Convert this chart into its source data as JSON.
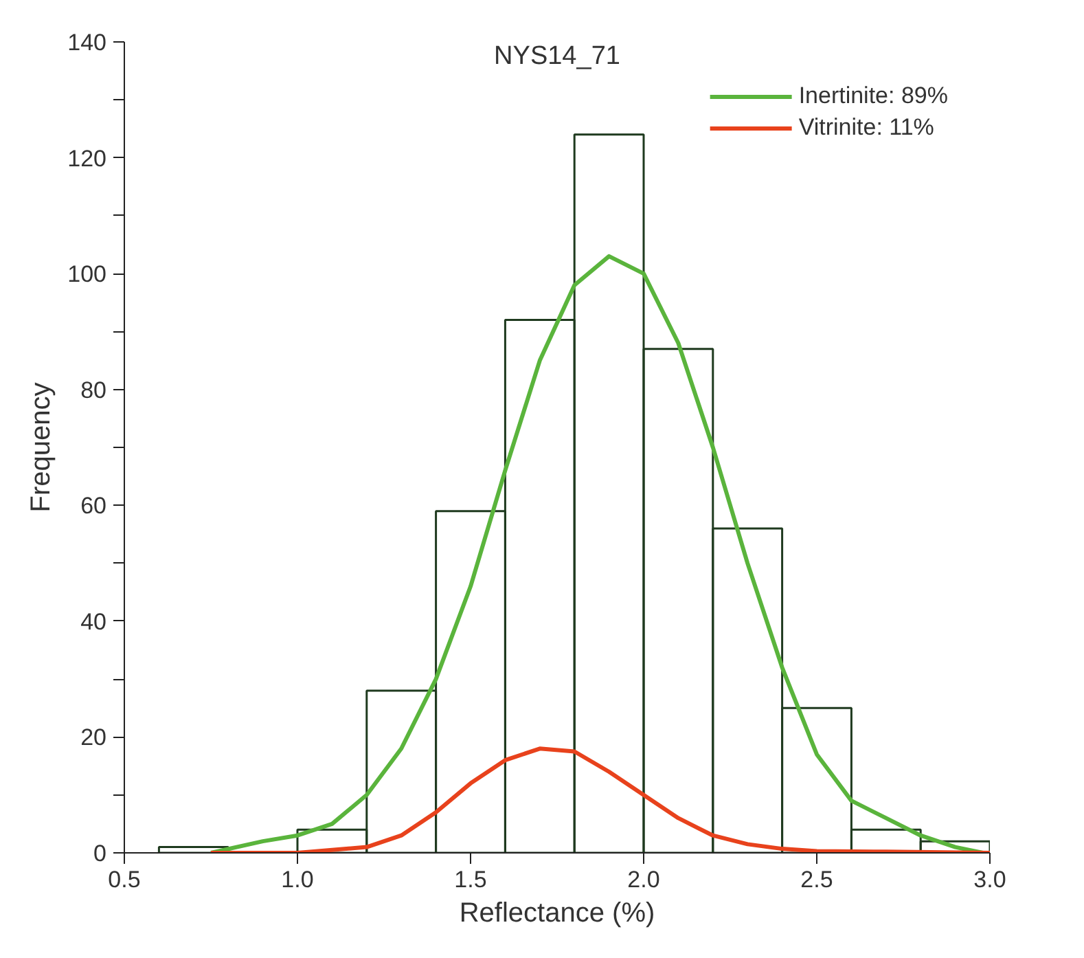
{
  "chart_data": {
    "type": "histogram",
    "title": "NYS14_71",
    "xlabel": "Reflectance (%)",
    "ylabel": "Frequency",
    "bins": [
      0.6,
      0.8,
      1.0,
      1.2,
      1.4,
      1.6,
      1.8,
      2.0,
      2.2,
      2.4,
      2.6,
      2.8,
      3.0
    ],
    "values": [
      1,
      0,
      4,
      28,
      59,
      92,
      124,
      87,
      56,
      25,
      4,
      2
    ],
    "color": "#1f3a1f",
    "series": [
      {
        "type": "line",
        "name": "Inertinite: 89%",
        "color": "#5ab43c",
        "x": [
          0.75,
          0.9,
          1.0,
          1.1,
          1.2,
          1.3,
          1.4,
          1.5,
          1.6,
          1.7,
          1.8,
          1.9,
          2.0,
          2.1,
          2.2,
          2.3,
          2.4,
          2.5,
          2.6,
          2.7,
          2.8,
          2.9,
          2.98
        ],
        "values": [
          0,
          2,
          3,
          5,
          10,
          18,
          30,
          46,
          66,
          85,
          98,
          103,
          100,
          88,
          70,
          50,
          32,
          17,
          9,
          6,
          3,
          1,
          0
        ]
      },
      {
        "type": "line",
        "name": "Vitrinite: 11%",
        "color": "#e8421c",
        "x": [
          0.75,
          1.0,
          1.2,
          1.3,
          1.4,
          1.5,
          1.6,
          1.7,
          1.8,
          1.9,
          2.0,
          2.1,
          2.2,
          2.3,
          2.4,
          2.5,
          2.7,
          3.0
        ],
        "values": [
          0,
          0,
          1,
          3,
          7,
          12,
          16,
          18,
          17.5,
          14,
          10,
          6,
          3,
          1.5,
          0.7,
          0.3,
          0.2,
          0
        ]
      }
    ],
    "xlim": [
      0.5,
      3.0
    ],
    "ylim": [
      0,
      140
    ],
    "xticks": [
      {
        "value": 0.5,
        "label": "0.5"
      },
      {
        "value": 1.0,
        "label": "1.0"
      },
      {
        "value": 1.5,
        "label": "1.5"
      },
      {
        "value": 2.0,
        "label": "2.0"
      },
      {
        "value": 2.5,
        "label": "2.5"
      },
      {
        "value": 3.0,
        "label": "3.0"
      }
    ],
    "yticks": [
      0,
      {
        "value": 10,
        "label": null
      },
      20,
      {
        "value": 30,
        "label": null
      },
      40,
      {
        "value": 50,
        "label": null
      },
      60,
      {
        "value": 70,
        "label": null
      },
      80,
      {
        "value": 90,
        "label": null
      },
      100,
      {
        "value": 110,
        "label": null
      },
      120,
      {
        "value": 130,
        "label": null
      },
      140
    ],
    "legend": "top right",
    "grid": false
  }
}
